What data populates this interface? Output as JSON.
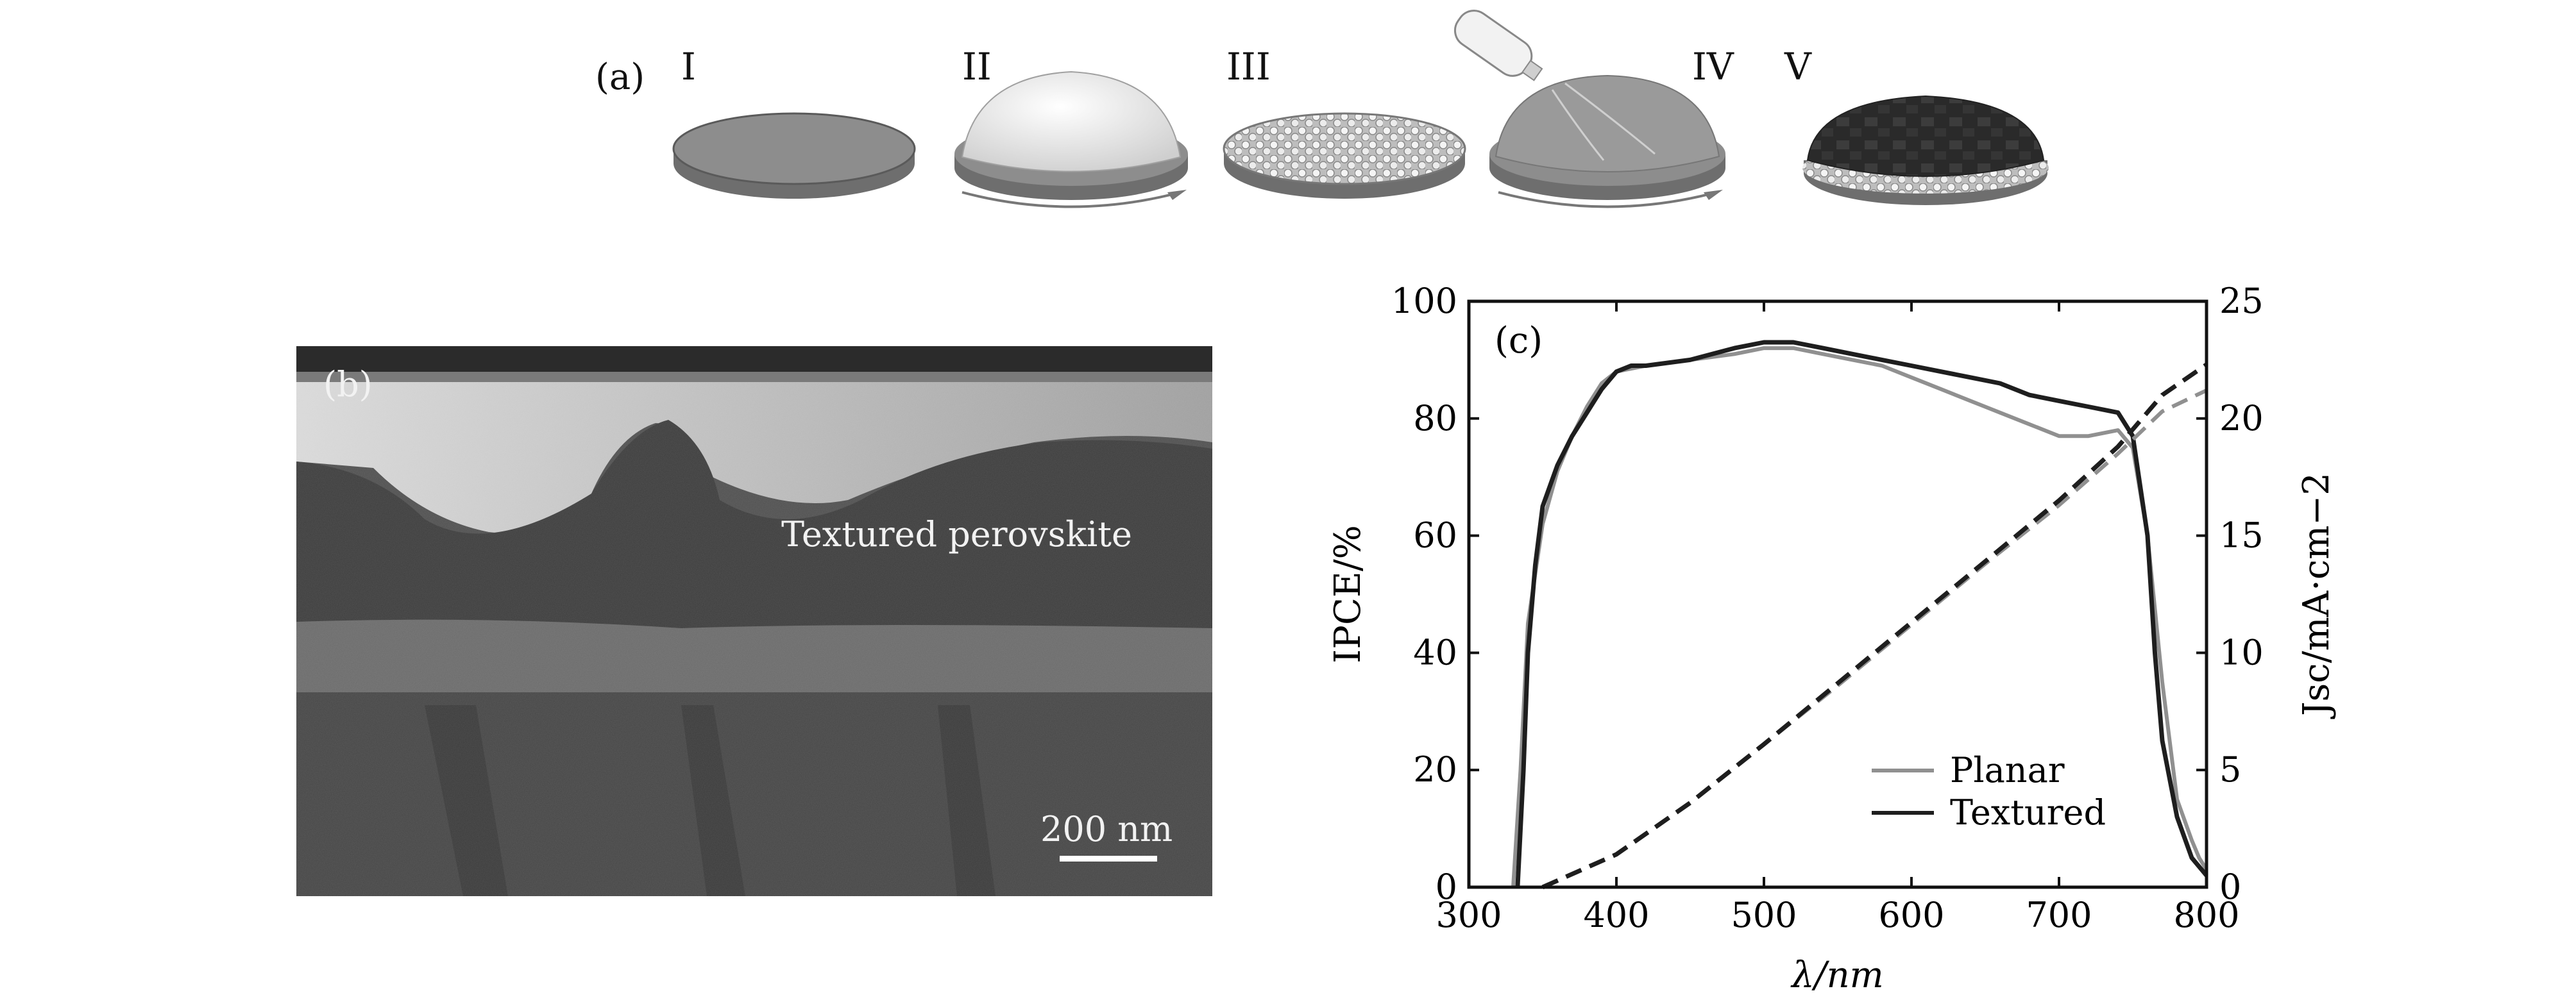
{
  "panel_a": {
    "label": "(a)",
    "steps": [
      "I",
      "II",
      "III",
      "IV",
      "V"
    ]
  },
  "panel_b": {
    "label": "(b)",
    "annotation": "Textured perovskite",
    "scale_bar": "200 nm"
  },
  "colors": {
    "planar": "#909090",
    "textured": "#1e1e1e",
    "tem_background": "#4a4a4a"
  },
  "chart_data": {
    "type": "line",
    "panel_label": "(c)",
    "xlabel": "λ/nm",
    "ylabel_left": "IPCE/%",
    "ylabel_right": "Jsc/mA·cm−2",
    "xlim": [
      300,
      800
    ],
    "ylim_left": [
      0,
      100
    ],
    "ylim_right": [
      0,
      25
    ],
    "x_ticks": [
      300,
      400,
      500,
      600,
      700,
      800
    ],
    "y_ticks_left": [
      0,
      20,
      40,
      60,
      80,
      100
    ],
    "y_ticks_right": [
      0,
      5,
      10,
      15,
      20,
      25
    ],
    "legend_position": "bottom-right",
    "grid": false,
    "series": [
      {
        "name": "Planar",
        "axis": "left",
        "style": "solid",
        "x": [
          330,
          335,
          340,
          350,
          360,
          370,
          380,
          390,
          400,
          420,
          450,
          480,
          500,
          520,
          540,
          560,
          580,
          600,
          620,
          640,
          660,
          680,
          700,
          720,
          740,
          750,
          760,
          770,
          780,
          790,
          795,
          800
        ],
        "y": [
          0,
          20,
          45,
          62,
          71,
          77,
          82,
          86,
          88,
          89,
          90,
          91,
          92,
          92,
          91,
          90,
          89,
          87,
          85,
          83,
          81,
          79,
          77,
          77,
          78,
          75,
          60,
          35,
          15,
          8,
          5,
          3
        ]
      },
      {
        "name": "Textured",
        "axis": "left",
        "style": "solid",
        "x": [
          333,
          337,
          340,
          345,
          350,
          360,
          370,
          380,
          390,
          400,
          410,
          420,
          450,
          480,
          500,
          520,
          540,
          560,
          580,
          600,
          620,
          640,
          660,
          680,
          700,
          720,
          740,
          750,
          760,
          765,
          770,
          780,
          790,
          800
        ],
        "y": [
          0,
          20,
          40,
          55,
          65,
          72,
          77,
          81,
          85,
          88,
          89,
          89,
          90,
          92,
          93,
          93,
          92,
          91,
          90,
          89,
          88,
          87,
          86,
          84,
          83,
          82,
          81,
          77,
          60,
          40,
          25,
          12,
          5,
          2
        ]
      },
      {
        "name": "Planar",
        "axis": "right",
        "style": "dashed",
        "x": [
          350,
          400,
          450,
          500,
          550,
          600,
          650,
          700,
          740,
          770,
          800
        ],
        "y": [
          0,
          1.4,
          3.6,
          6.1,
          8.6,
          11.2,
          13.8,
          16.3,
          18.5,
          20.3,
          21.2
        ]
      },
      {
        "name": "Textured",
        "axis": "right",
        "style": "dashed",
        "x": [
          350,
          400,
          450,
          500,
          550,
          600,
          650,
          700,
          740,
          770,
          800
        ],
        "y": [
          0,
          1.4,
          3.6,
          6.1,
          8.7,
          11.3,
          13.9,
          16.5,
          18.8,
          21.0,
          22.3
        ]
      }
    ]
  }
}
